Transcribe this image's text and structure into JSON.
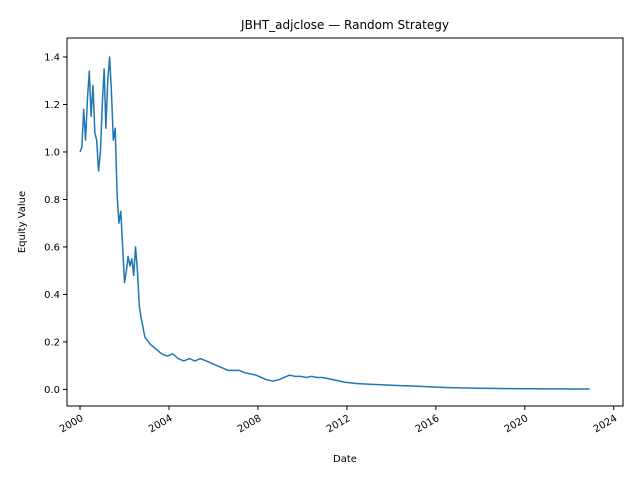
{
  "chart_data": {
    "type": "line",
    "title": "JBHT_adjclose — Random Strategy",
    "xlabel": "Date",
    "ylabel": "Equity Value",
    "xlim": [
      "1999-06-01",
      "2024-06-01"
    ],
    "ylim": [
      -0.07,
      1.48
    ],
    "x_ticks": [
      "2000",
      "2004",
      "2008",
      "2012",
      "2016",
      "2020",
      "2024"
    ],
    "y_ticks": [
      "0.0",
      "0.2",
      "0.4",
      "0.6",
      "0.8",
      "1.0",
      "1.2",
      "1.4"
    ],
    "grid": false,
    "color": "#1f77b4",
    "series": [
      {
        "x": [
          "2000-01-01",
          "2000-02-01",
          "2000-03-01",
          "2000-04-01",
          "2000-05-01",
          "2000-06-01",
          "2000-07-01",
          "2000-08-01",
          "2000-09-01",
          "2000-10-01",
          "2000-11-01",
          "2000-12-01",
          "2001-01-01",
          "2001-02-01",
          "2001-03-01",
          "2001-04-01",
          "2001-05-01",
          "2001-06-01",
          "2001-07-01",
          "2001-08-01",
          "2001-09-01",
          "2001-10-01",
          "2001-11-01",
          "2001-12-01",
          "2002-01-01",
          "2002-02-01",
          "2002-03-01",
          "2002-04-01",
          "2002-05-01",
          "2002-06-01",
          "2002-07-01",
          "2002-08-01",
          "2002-09-01",
          "2002-10-01",
          "2002-11-01",
          "2002-12-01",
          "2003-03-01",
          "2003-06-01",
          "2003-09-01",
          "2003-12-01",
          "2004-03-01",
          "2004-06-01",
          "2004-09-01",
          "2004-12-01",
          "2005-03-01",
          "2005-06-01",
          "2005-09-01",
          "2005-12-01",
          "2006-03-01",
          "2006-06-01",
          "2006-09-01",
          "2006-12-01",
          "2007-03-01",
          "2007-06-01",
          "2007-09-01",
          "2007-12-01",
          "2008-03-01",
          "2008-06-01",
          "2008-09-01",
          "2008-12-01",
          "2009-03-01",
          "2009-06-01",
          "2009-09-01",
          "2009-12-01",
          "2010-03-01",
          "2010-06-01",
          "2010-09-01",
          "2010-12-01",
          "2011-06-01",
          "2011-12-01",
          "2012-06-01",
          "2012-12-01",
          "2013-06-01",
          "2013-12-01",
          "2014-06-01",
          "2014-12-01",
          "2015-06-01",
          "2015-12-01",
          "2016-06-01",
          "2016-12-01",
          "2017-06-01",
          "2017-12-01",
          "2018-06-01",
          "2018-12-01",
          "2019-06-01",
          "2019-12-01",
          "2020-06-01",
          "2020-12-01",
          "2021-06-01",
          "2021-12-01",
          "2022-06-01",
          "2022-12-01"
        ],
        "y": [
          1.0,
          1.02,
          1.18,
          1.05,
          1.22,
          1.34,
          1.15,
          1.28,
          1.08,
          1.05,
          0.92,
          1.0,
          1.2,
          1.35,
          1.1,
          1.3,
          1.4,
          1.25,
          1.05,
          1.1,
          0.82,
          0.7,
          0.75,
          0.6,
          0.45,
          0.5,
          0.56,
          0.52,
          0.55,
          0.48,
          0.6,
          0.5,
          0.35,
          0.3,
          0.26,
          0.22,
          0.19,
          0.17,
          0.15,
          0.14,
          0.15,
          0.13,
          0.12,
          0.13,
          0.12,
          0.13,
          0.12,
          0.11,
          0.1,
          0.09,
          0.08,
          0.08,
          0.08,
          0.07,
          0.065,
          0.06,
          0.05,
          0.04,
          0.035,
          0.04,
          0.05,
          0.06,
          0.055,
          0.055,
          0.05,
          0.055,
          0.05,
          0.05,
          0.04,
          0.03,
          0.025,
          0.022,
          0.02,
          0.018,
          0.016,
          0.014,
          0.012,
          0.01,
          0.008,
          0.007,
          0.006,
          0.005,
          0.004,
          0.0035,
          0.003,
          0.0028,
          0.0025,
          0.0022,
          0.002,
          0.0018,
          0.0016,
          0.0015
        ]
      }
    ]
  }
}
